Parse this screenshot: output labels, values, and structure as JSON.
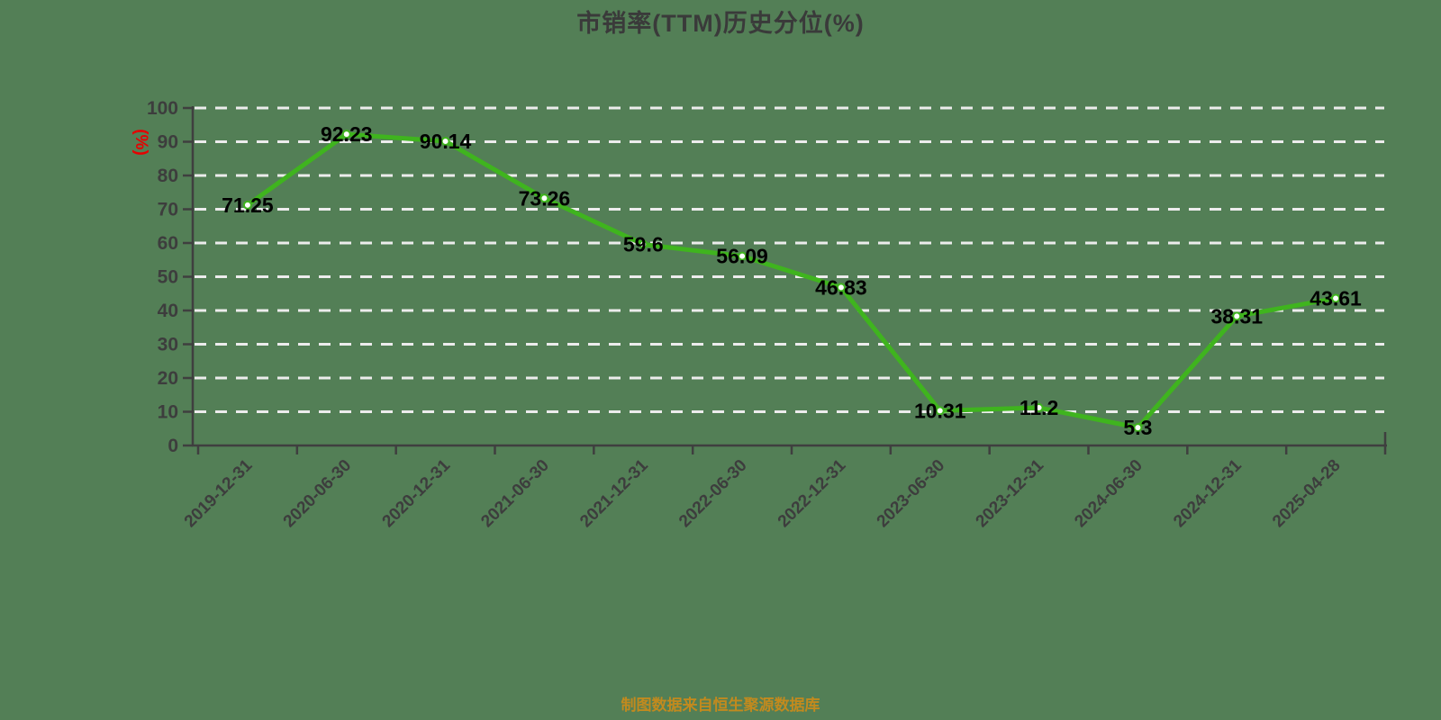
{
  "title": "市销率(TTM)历史分位(%)",
  "footer": "制图数据来自恒生聚源数据库",
  "y_axis": {
    "name": "(%)",
    "min": 0,
    "max": 100,
    "tick_step": 10,
    "tick_labels": [
      "0",
      "10",
      "20",
      "30",
      "40",
      "50",
      "60",
      "70",
      "80",
      "90",
      "100"
    ]
  },
  "chart_data": {
    "type": "line",
    "title": "市销率(TTM)历史分位(%)",
    "categories": [
      "2019-12-31",
      "2020-06-30",
      "2020-12-31",
      "2021-06-30",
      "2021-12-31",
      "2022-06-30",
      "2022-12-31",
      "2023-06-30",
      "2023-12-31",
      "2024-06-30",
      "2024-12-31",
      "2025-04-28"
    ],
    "values": [
      71.25,
      92.23,
      90.14,
      73.26,
      59.6,
      56.09,
      46.83,
      10.31,
      11.2,
      5.3,
      38.31,
      43.61
    ],
    "point_labels": [
      "71.25",
      "92.23",
      "90.14",
      "73.26",
      "59.6",
      "56.09",
      "46.83",
      "10.31",
      "11.2",
      "5.3",
      "38.31",
      "43.61"
    ],
    "xlabel": "",
    "ylabel": "(%)",
    "ylim": [
      0,
      100
    ],
    "ytick_step": 10,
    "grid": "horizontal-dashed-white",
    "legend": "none",
    "x_label_rotation_deg": 45
  },
  "colors": {
    "background": "#537f56",
    "line": "#3fb41e",
    "point_fill": "#ffffff",
    "grid": "#ececec",
    "axis": "#3f3f3f",
    "tick_label": "#3d3d3d",
    "value_label": "#000000",
    "title": "#3a3a3a",
    "y_axis_name": "#e60000",
    "footer": "#c28a1e"
  }
}
